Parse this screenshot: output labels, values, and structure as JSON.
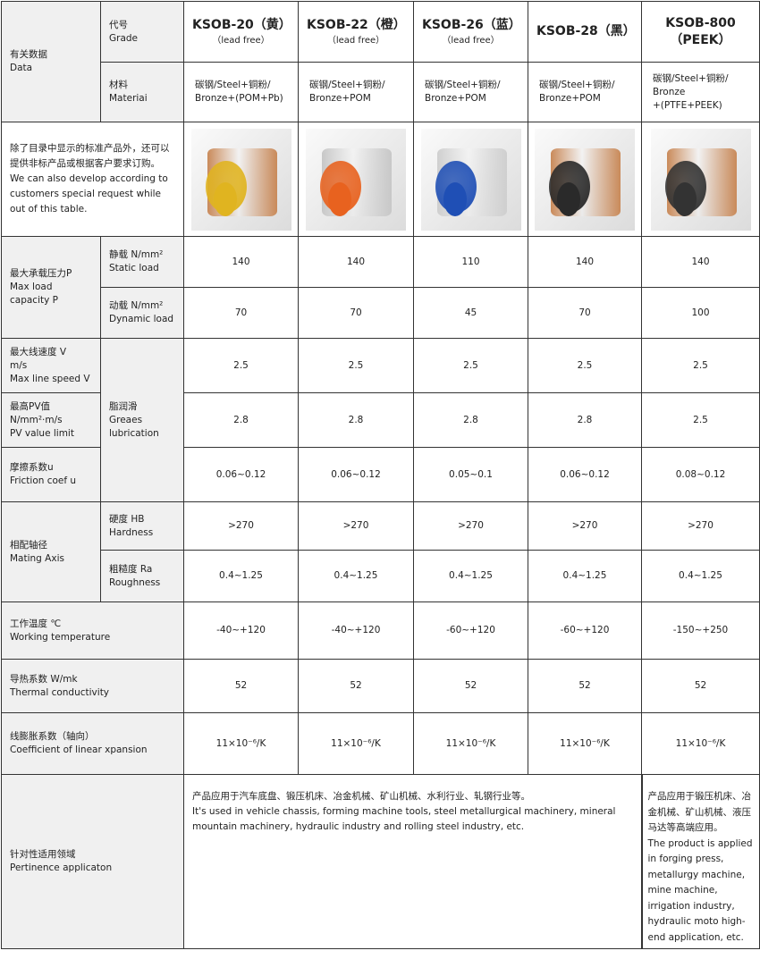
{
  "header": {
    "data_label": [
      "有关数据",
      "Data"
    ],
    "grade_label": [
      "代号",
      "Grade"
    ],
    "material_label": [
      "材料",
      "Materiai"
    ]
  },
  "products": [
    {
      "name": "KSOB-20（黄）",
      "sub": "（lead free）",
      "material": [
        "碳钢/Steel+铜粉/",
        "Bronze+(POM+Pb)"
      ],
      "color": "yellow",
      "liner": "#e0b420",
      "shell": "#c98a5a"
    },
    {
      "name": "KSOB-22（橙）",
      "sub": "（lead free）",
      "material": [
        "碳钢/Steel+铜粉/",
        "Bronze+POM"
      ],
      "color": "orange",
      "liner": "#e8621f",
      "shell": "#c8c8c8"
    },
    {
      "name": "KSOB-26（蓝）",
      "sub": "（lead free）",
      "material": [
        "碳钢/Steel+铜粉/",
        "Bronze+POM"
      ],
      "color": "blue",
      "liner": "#1f4fb5",
      "shell": "#cfcfcf"
    },
    {
      "name": "KSOB-28（黑）",
      "sub": "",
      "material": [
        "碳钢/Steel+铜粉/",
        "Bronze+POM"
      ],
      "color": "black",
      "liner": "#2a2a2a",
      "shell": "#c98a5a"
    },
    {
      "name": "KSOB-800",
      "sub": "（PEEK）",
      "material": [
        "碳钢/Steel+铜粉/",
        "Bronze",
        "+(PTFE+PEEK)"
      ],
      "color": "black",
      "liner": "#333333",
      "shell": "#c98a5a"
    }
  ],
  "custom_note": [
    "除了目录中显示的标准产品外，还可以提供非标产品或根据客户要求订购。",
    "We can also develop according to customers special request while out of this  table."
  ],
  "rows": {
    "max_load": {
      "label": [
        "最大承载压力P",
        "Max load capacity P"
      ]
    },
    "static": {
      "label": [
        "静载 N/mm²",
        "Static load"
      ],
      "values": [
        "140",
        "140",
        "110",
        "140",
        "140"
      ]
    },
    "dynamic": {
      "label": [
        "动载 N/mm²",
        "Dynamic load"
      ],
      "values": [
        "70",
        "70",
        "45",
        "70",
        "100"
      ]
    },
    "lubrication": {
      "label": [
        "脂润滑",
        "Greaes",
        "lubrication"
      ]
    },
    "speed": {
      "label": [
        "最大线速度 V",
        "m/s",
        "Max line speed V"
      ],
      "values": [
        "2.5",
        "2.5",
        "2.5",
        "2.5",
        "2.5"
      ]
    },
    "pv": {
      "label": [
        "最高PV值",
        "N/mm²·m/s",
        "PV value limit"
      ],
      "values": [
        "2.8",
        "2.8",
        "2.8",
        "2.8",
        "2.5"
      ]
    },
    "friction": {
      "label": [
        "摩擦系数u",
        "Friction coef u"
      ],
      "values": [
        "0.06~0.12",
        "0.06~0.12",
        "0.05~0.1",
        "0.06~0.12",
        "0.08~0.12"
      ]
    },
    "mating": {
      "label": [
        "相配轴径",
        "Mating Axis"
      ]
    },
    "hardness": {
      "label": [
        "硬度 HB",
        "Hardness"
      ],
      "values": [
        ">270",
        ">270",
        ">270",
        ">270",
        ">270"
      ]
    },
    "roughness": {
      "label": [
        "粗糙度 Ra",
        "Roughness"
      ],
      "values": [
        "0.4~1.25",
        "0.4~1.25",
        "0.4~1.25",
        "0.4~1.25",
        "0.4~1.25"
      ]
    },
    "temperature": {
      "label": [
        "工作温度 ℃",
        "Working temperature"
      ],
      "values": [
        "-40~+120",
        "-40~+120",
        "-60~+120",
        "-60~+120",
        "-150~+250"
      ]
    },
    "thermal": {
      "label": [
        "导热系数 W/mk",
        "Thermal conductivity"
      ],
      "values": [
        "52",
        "52",
        "52",
        "52",
        "52"
      ]
    },
    "expansion": {
      "label": [
        "线膨胀系数（轴向）",
        "Coefficient of linear xpansion"
      ],
      "values": [
        "11×10⁻⁶/K",
        "11×10⁻⁶/K",
        "11×10⁻⁶/K",
        "11×10⁻⁶/K",
        "11×10⁻⁶/K"
      ]
    },
    "application": {
      "label": [
        "针对性适用领域",
        "Pertinence applicaton"
      ],
      "main": [
        "产品应用于汽车底盘、锻压机床、冶金机械、矿山机械、水利行业、轧钢行业等。",
        "It's used in vehicle chassis, forming machine tools, steel metallurgical machinery, mineral mountain machinery, hydraulic industry and rolling steel industry, etc."
      ],
      "peek": [
        "产品应用于锻压机床、冶金机械、矿山机械、液压马达等高端应用。",
        "The product is applied in forging press, metallurgy machine, mine machine, irrigation industry, hydraulic moto high-end application, etc."
      ]
    }
  },
  "colors": {
    "label_bg": "#f0f0f0",
    "border": "#333333"
  }
}
